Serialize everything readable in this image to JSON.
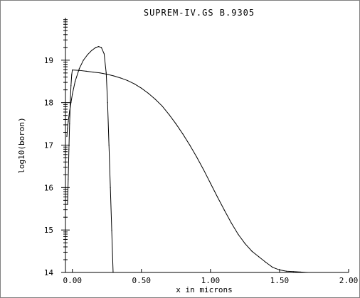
{
  "chart_data": {
    "type": "line",
    "title": "SUPREM-IV.GS B.9305",
    "xlabel": "x in microns",
    "ylabel": "log10(boron)",
    "xlim": [
      -0.05,
      2.0
    ],
    "ylim": [
      14,
      20
    ],
    "x_ticks": [
      0.0,
      0.5,
      1.0,
      1.5,
      2.0
    ],
    "x_tick_labels": [
      "0.00",
      "0.50",
      "1.00",
      "1.50",
      "2.00"
    ],
    "y_ticks": [
      14,
      15,
      16,
      17,
      18,
      19
    ],
    "y_tick_labels": [
      "14",
      "15",
      "16",
      "17",
      "18",
      "19"
    ],
    "grid": false,
    "legend": "none",
    "colors": {
      "line": "#000000",
      "frame": "#808080",
      "background": "#ffffff"
    },
    "series": [
      {
        "x": [
          -0.04,
          -0.035,
          -0.03,
          -0.02,
          -0.01,
          0.0,
          0.02,
          0.05,
          0.08,
          0.11,
          0.14,
          0.17,
          0.19,
          0.21,
          0.23,
          0.245,
          0.255,
          0.265,
          0.275,
          0.285,
          0.295
        ],
        "y": [
          17.2,
          17.4,
          17.55,
          17.8,
          18.0,
          18.2,
          18.5,
          18.8,
          19.0,
          19.13,
          19.23,
          19.3,
          19.32,
          19.3,
          19.15,
          18.7,
          18.0,
          17.0,
          16.0,
          15.0,
          14.0
        ]
      },
      {
        "x": [
          -0.035,
          -0.03,
          -0.025,
          -0.02,
          -0.015,
          -0.01,
          -0.005,
          0.0,
          0.05,
          0.1,
          0.15,
          0.2,
          0.25,
          0.3,
          0.35,
          0.4,
          0.45,
          0.5,
          0.55,
          0.6,
          0.65,
          0.7,
          0.75,
          0.8,
          0.85,
          0.9,
          0.95,
          1.0,
          1.05,
          1.1,
          1.15,
          1.2,
          1.25,
          1.3,
          1.35,
          1.4,
          1.45,
          1.5,
          1.55,
          1.6,
          1.65,
          1.7
        ],
        "y": [
          15.6,
          16.2,
          16.9,
          17.5,
          18.0,
          18.4,
          18.65,
          18.77,
          18.76,
          18.74,
          18.72,
          18.7,
          18.67,
          18.63,
          18.58,
          18.52,
          18.44,
          18.34,
          18.22,
          18.08,
          17.92,
          17.72,
          17.5,
          17.26,
          17.0,
          16.72,
          16.42,
          16.1,
          15.78,
          15.47,
          15.17,
          14.9,
          14.68,
          14.5,
          14.37,
          14.24,
          14.12,
          14.06,
          14.03,
          14.02,
          14.01,
          14.0
        ]
      }
    ]
  }
}
